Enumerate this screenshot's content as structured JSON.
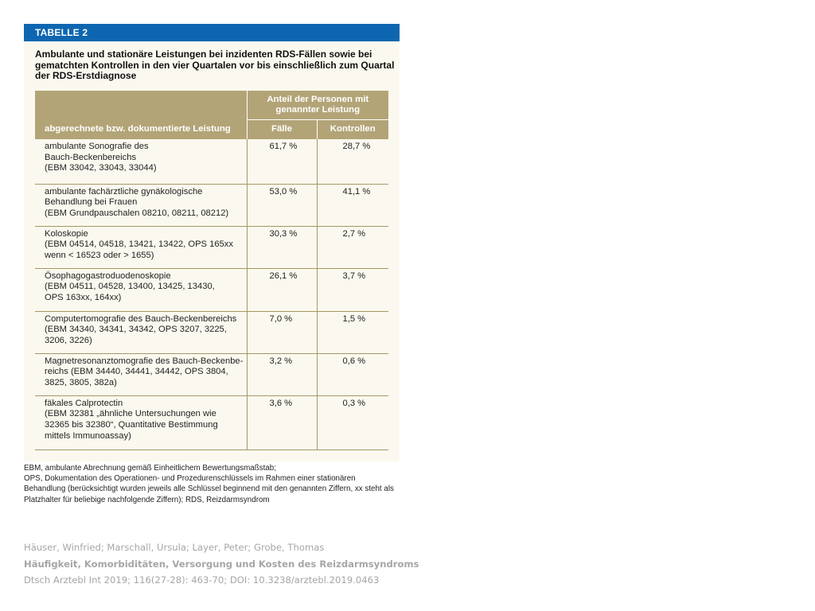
{
  "table": {
    "header_label": "TABELLE 2",
    "caption": "Ambulante und stationäre Leistungen bei inzidenten RDS-Fällen sowie bei gematchten Kontrollen in den vier Quartalen vor bis einschließlich zum Quartal der RDS-Erstdiagnose",
    "columns": {
      "service": "abgerechnete bzw. dokumentierte Leistung",
      "share_group": "Anteil der Personen mit genannter Leistung",
      "cases": "Fälle",
      "controls": "Kontrollen"
    },
    "rows": [
      {
        "label": "ambulante Sonografie des\nBauch-Beckenbereichs\n(EBM 33042, 33043, 33044)",
        "cases": "61,7 %",
        "controls": "28,7 %"
      },
      {
        "label": "ambulante fachärztliche gynäkologische\nBehandlung bei Frauen\n(EBM Grundpauschalen 08210, 08211, 08212)",
        "cases": "53,0 %",
        "controls": "41,1 %"
      },
      {
        "label": "Koloskopie\n(EBM 04514, 04518, 13421, 13422, OPS 165xx\nwenn < 16523 oder > 1655)",
        "cases": "30,3 %",
        "controls": "2,7 %"
      },
      {
        "label": "Ösophagogastroduodenoskopie\n(EBM 04511, 04528, 13400, 13425, 13430,\nOPS 163xx, 164xx)",
        "cases": "26,1 %",
        "controls": "3,7 %"
      },
      {
        "label": "Computertomografie des Bauch-Beckenbereichs\n(EBM 34340, 34341, 34342, OPS 3207, 3225,\n3206, 3226)",
        "cases": "7,0 %",
        "controls": "1,5 %"
      },
      {
        "label": "Magnetresonanztomografie des Bauch-Beckenbe-\nreichs (EBM 34440, 34441, 34442, OPS 3804,\n3825, 3805, 382a)",
        "cases": "3,2 %",
        "controls": "0,6 %"
      },
      {
        "label": "fäkales Calprotectin\n(EBM 32381 „ähnliche Untersuchungen wie\n32365 bis 32380“, Quantitative Bestimmung\nmittels Immunoassay)",
        "cases": "3,6 %",
        "controls": "0,3 %"
      }
    ],
    "footnote": "EBM, ambulante Abrechnung gemäß Einheitlichem Bewertungsmaßstab;\nOPS, Dokumentation des Operationen- und Prozedurenschlüssels im Rahmen einer stationären\nBehandlung (berücksichtigt wurden jeweils alle Schlüssel beginnend mit den genannten Ziffern, xx steht als\nPlatzhalter für beliebige nachfolgende Ziffern); RDS, Reizdarmsyndrom"
  },
  "citation": {
    "authors": "Häuser, Winfried; Marschall, Ursula; Layer, Peter; Grobe, Thomas",
    "title": "Häufigkeit, Komorbiditäten, Versorgung und Kosten des Reizdarmsyndroms",
    "source": "Dtsch Arztebl Int 2019; 116(27-28): 463-70; DOI: 10.3238/arztebl.2019.0463"
  },
  "colors": {
    "header_blue": "#0e66b0",
    "column_header_tan": "#b3a477",
    "row_rule": "#a59765",
    "panel_background": "#fbf9ef",
    "citation_gray": "#a6a6a6"
  }
}
